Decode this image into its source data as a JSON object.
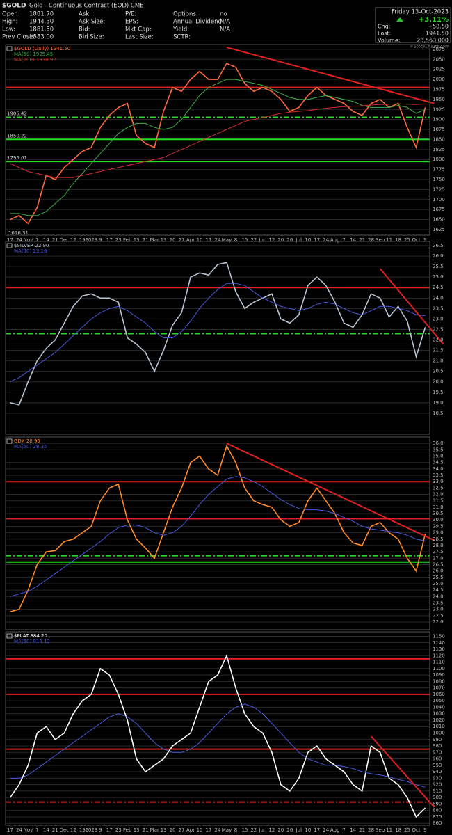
{
  "header": {
    "symbol": "$GOLD",
    "description": "Gold - Continuous Contract (EOD) CME",
    "watermark": "©StockCharts.com",
    "columns": [
      [
        {
          "label": "Open:",
          "value": "1881.70"
        },
        {
          "label": "High:",
          "value": "1944.30"
        },
        {
          "label": "Low:",
          "value": "1881.50"
        },
        {
          "label": "Prev Close:",
          "value": "1883.00"
        }
      ],
      [
        {
          "label": "Ask:"
        },
        {
          "label": "Ask Size:"
        },
        {
          "label": "Bid:"
        },
        {
          "label": "Bid Size:"
        }
      ],
      [
        {
          "label": "P/E:"
        },
        {
          "label": "EPS:"
        },
        {
          "label": "Mkt Cap:"
        },
        {
          "label": "Last Size:"
        }
      ],
      [
        {
          "label": "Options:",
          "value": "no"
        },
        {
          "label": "Annual Dividend:",
          "value": "N/A"
        },
        {
          "label": "Yield:",
          "value": "N/A"
        },
        {
          "label": "SCTR:"
        }
      ]
    ],
    "quote": {
      "date": "Friday 13-Oct-2023",
      "change_pct": "+3.11%",
      "rows": [
        {
          "label": "Chg:",
          "value": "+58.50"
        },
        {
          "label": "Last:",
          "value": "1941.50"
        },
        {
          "label": "Volume:",
          "value": "28,563,000"
        }
      ]
    }
  },
  "chart_data": [
    {
      "type": "line",
      "grid": true,
      "categories": [
        "17",
        "24",
        "Nov",
        "7",
        "14",
        "21",
        "Dec",
        "12",
        "19",
        "2023",
        "9",
        "17",
        "23",
        "Feb",
        "13",
        "21",
        "Mar",
        "13",
        "20",
        "27",
        "Apr",
        "10",
        "17",
        "24",
        "May",
        "8",
        "15",
        "22",
        "Jun",
        "12",
        "20",
        "26",
        "Jul",
        "10",
        "17",
        "24",
        "Aug",
        "7",
        "14",
        "21",
        "28",
        "Sep",
        "11",
        "18",
        "25",
        "Oct",
        "9"
      ],
      "series": [
        {
          "name": "$GOLD (Daily) 1941.50",
          "color": "#ff6a3d",
          "values": [
            1650,
            1660,
            1640,
            1680,
            1760,
            1750,
            1780,
            1800,
            1820,
            1830,
            1880,
            1910,
            1930,
            1940,
            1860,
            1840,
            1830,
            1920,
            1980,
            1970,
            2000,
            2020,
            2000,
            2000,
            2040,
            2030,
            1990,
            1970,
            1980,
            1970,
            1950,
            1920,
            1930,
            1960,
            1980,
            1960,
            1950,
            1940,
            1920,
            1910,
            1940,
            1950,
            1930,
            1940,
            1880,
            1830,
            1930
          ]
        },
        {
          "name": "MA(50) 1925.45",
          "color": "#3cb043",
          "values": [
            1665,
            1665,
            1660,
            1660,
            1670,
            1690,
            1710,
            1740,
            1765,
            1790,
            1815,
            1840,
            1865,
            1880,
            1890,
            1890,
            1880,
            1875,
            1880,
            1900,
            1930,
            1960,
            1980,
            1990,
            2000,
            2000,
            1995,
            1990,
            1985,
            1975,
            1965,
            1955,
            1950,
            1950,
            1955,
            1960,
            1955,
            1950,
            1945,
            1935,
            1930,
            1930,
            1930,
            1935,
            1930,
            1915,
            1925
          ]
        },
        {
          "name": "MA(200) 1938.92",
          "color": "#d03030",
          "values": [
            1790,
            1780,
            1770,
            1765,
            1760,
            1755,
            1755,
            1755,
            1760,
            1765,
            1770,
            1775,
            1780,
            1785,
            1790,
            1795,
            1800,
            1805,
            1815,
            1825,
            1835,
            1845,
            1855,
            1865,
            1875,
            1885,
            1895,
            1900,
            1905,
            1910,
            1915,
            1918,
            1920,
            1922,
            1925,
            1928,
            1930,
            1932,
            1933,
            1934,
            1936,
            1937,
            1938,
            1939,
            1938,
            1937,
            1939
          ]
        }
      ],
      "ylim": [
        1611,
        2087
      ],
      "yticks": [
        1625,
        1650,
        1675,
        1700,
        1725,
        1750,
        1775,
        1800,
        1825,
        1850,
        1875,
        1900,
        1925,
        1950,
        1975,
        2000,
        2025,
        2050,
        2075
      ],
      "hlines": [
        {
          "value": 1980,
          "color": "#e02020"
        },
        {
          "value": 1905.42,
          "color": "#22dd22",
          "dash": true,
          "labeled": true
        },
        {
          "value": 1850.22,
          "color": "#22dd22",
          "labeled": true
        },
        {
          "value": 1795.01,
          "color": "#22dd22",
          "labeled": true
        }
      ],
      "low_label": 1616.31,
      "trendlines": [
        {
          "start_index": 24,
          "start_value": 2080,
          "end_index": 47,
          "end_value": 1940
        }
      ]
    },
    {
      "type": "line",
      "grid": true,
      "series": [
        {
          "name": "$SILVER 22.90",
          "color": "#b8c4d0",
          "values": [
            19.0,
            18.9,
            20.0,
            21.0,
            21.6,
            22.0,
            22.8,
            23.6,
            24.1,
            24.2,
            24.0,
            24.0,
            23.8,
            22.1,
            21.8,
            21.4,
            20.5,
            21.5,
            22.7,
            23.3,
            25.0,
            25.2,
            25.1,
            25.6,
            25.7,
            24.3,
            23.5,
            23.8,
            24.0,
            24.2,
            23.0,
            22.8,
            23.2,
            24.6,
            25.0,
            24.6,
            23.8,
            22.8,
            22.6,
            23.2,
            24.2,
            24.0,
            23.1,
            23.6,
            22.9,
            21.2,
            22.6
          ]
        },
        {
          "name": "MA(50) 23.16",
          "color": "#4a5adf",
          "values": [
            20.0,
            20.2,
            20.5,
            20.8,
            21.1,
            21.4,
            21.8,
            22.2,
            22.6,
            23.0,
            23.3,
            23.5,
            23.6,
            23.4,
            23.1,
            22.8,
            22.4,
            22.1,
            22.1,
            22.4,
            22.9,
            23.5,
            24.0,
            24.4,
            24.7,
            24.7,
            24.6,
            24.3,
            24.0,
            23.8,
            23.6,
            23.5,
            23.4,
            23.5,
            23.7,
            23.8,
            23.7,
            23.5,
            23.3,
            23.2,
            23.4,
            23.6,
            23.6,
            23.5,
            23.4,
            23.2,
            23.16
          ]
        }
      ],
      "ylim": [
        17.5,
        26.7
      ],
      "yticks": [
        18.5,
        {
          "value": 19,
          "label": "19.0"
        },
        19.5,
        {
          "value": 20,
          "label": "20.0"
        },
        20.5,
        {
          "value": 21,
          "label": "21.0"
        },
        21.5,
        {
          "value": 22,
          "label": "22.0"
        },
        22.5,
        {
          "value": 23,
          "label": "23.0"
        },
        23.5,
        {
          "value": 24,
          "label": "24.0"
        },
        24.5,
        {
          "value": 25,
          "label": "25.0"
        },
        25.5,
        {
          "value": 26,
          "label": "26.0"
        },
        26.5
      ],
      "hlines": [
        {
          "value": 24.5,
          "color": "#e02020"
        },
        {
          "value": 22.3,
          "color": "#22dd22",
          "dash": true
        }
      ],
      "trendlines": [
        {
          "start_index": 41,
          "start_value": 25.4,
          "end_index": 48,
          "end_value": 21.8
        }
      ]
    },
    {
      "type": "line",
      "grid": true,
      "series": [
        {
          "name": "GDX 28.95",
          "color": "#ff8a2a",
          "values": [
            22.8,
            23.0,
            24.5,
            26.5,
            27.5,
            27.6,
            28.3,
            28.5,
            29.0,
            29.5,
            31.5,
            32.5,
            32.8,
            30.0,
            28.5,
            27.8,
            27.0,
            29.0,
            31.0,
            32.5,
            34.5,
            35.0,
            34.0,
            33.5,
            35.8,
            34.5,
            32.5,
            31.5,
            31.2,
            31.0,
            30.0,
            29.5,
            29.8,
            31.5,
            32.5,
            31.5,
            30.5,
            29.0,
            28.2,
            28.0,
            29.5,
            29.8,
            29.0,
            28.5,
            27.0,
            26.0,
            28.9
          ]
        },
        {
          "name": "MA(50) 28.35",
          "color": "#4a5adf",
          "values": [
            24.0,
            24.2,
            24.4,
            24.8,
            25.3,
            25.8,
            26.3,
            26.8,
            27.3,
            27.8,
            28.3,
            28.9,
            29.4,
            29.6,
            29.6,
            29.4,
            29.0,
            28.8,
            29.0,
            29.5,
            30.3,
            31.2,
            32.0,
            32.6,
            33.2,
            33.4,
            33.3,
            33.0,
            32.6,
            32.1,
            31.6,
            31.2,
            30.9,
            30.8,
            30.8,
            30.7,
            30.5,
            30.2,
            29.9,
            29.5,
            29.3,
            29.2,
            29.1,
            29.0,
            28.8,
            28.5,
            28.35
          ]
        }
      ],
      "ylim": [
        21.4,
        36.5
      ],
      "yticks": [
        {
          "value": 22,
          "label": "22.0"
        },
        22.5,
        {
          "value": 23,
          "label": "23.0"
        },
        23.5,
        {
          "value": 24,
          "label": "24.0"
        },
        24.5,
        {
          "value": 25,
          "label": "25.0"
        },
        25.5,
        {
          "value": 26,
          "label": "26.0"
        },
        26.5,
        {
          "value": 27,
          "label": "27.0"
        },
        27.5,
        {
          "value": 28,
          "label": "28.0"
        },
        28.5,
        {
          "value": 29,
          "label": "29.0"
        },
        29.5,
        {
          "value": 30,
          "label": "30.0"
        },
        30.5,
        {
          "value": 31,
          "label": "31.0"
        },
        31.5,
        {
          "value": 32,
          "label": "32.0"
        },
        32.5,
        {
          "value": 33,
          "label": "33.0"
        },
        33.5,
        {
          "value": 34,
          "label": "34.0"
        },
        34.5,
        {
          "value": 35,
          "label": "35.0"
        },
        35.5,
        {
          "value": 36,
          "label": "36.0"
        }
      ],
      "hlines": [
        {
          "value": 33.0,
          "color": "#e02020"
        },
        {
          "value": 30.1,
          "color": "#e02020"
        },
        {
          "value": 27.2,
          "color": "#22dd22",
          "dash": true
        },
        {
          "value": 26.7,
          "color": "#22dd22"
        }
      ],
      "trendlines": [
        {
          "start_index": 24,
          "start_value": 36.0,
          "end_index": 47,
          "end_value": 28.4
        }
      ]
    },
    {
      "type": "line",
      "grid": true,
      "categories": [
        "17",
        "24",
        "Nov",
        "7",
        "14",
        "21",
        "Dec",
        "12",
        "19",
        "2023",
        "9",
        "17",
        "23",
        "Feb",
        "13",
        "21",
        "Mar",
        "13",
        "20",
        "27",
        "Apr",
        "10",
        "17",
        "24",
        "May",
        "8",
        "15",
        "22",
        "Jun",
        "12",
        "20",
        "26",
        "Jul",
        "10",
        "17",
        "24",
        "Aug",
        "7",
        "14",
        "21",
        "28",
        "Sep",
        "11",
        "18",
        "25",
        "Oct",
        "9"
      ],
      "series": [
        {
          "name": "$PLAT 884.20",
          "color": "#ffffff",
          "values": [
            900,
            920,
            950,
            1000,
            1010,
            990,
            1000,
            1030,
            1050,
            1060,
            1100,
            1090,
            1060,
            1020,
            960,
            940,
            950,
            960,
            980,
            990,
            1000,
            1040,
            1080,
            1090,
            1120,
            1070,
            1030,
            1010,
            1000,
            970,
            920,
            910,
            930,
            970,
            980,
            960,
            950,
            940,
            920,
            910,
            980,
            970,
            930,
            920,
            900,
            870,
            884
          ]
        },
        {
          "name": "MA(50) 916.12",
          "color": "#4a5adf",
          "values": [
            930,
            930,
            935,
            945,
            955,
            965,
            975,
            985,
            995,
            1005,
            1015,
            1025,
            1030,
            1025,
            1015,
            1000,
            985,
            975,
            970,
            970,
            975,
            985,
            1000,
            1015,
            1030,
            1040,
            1045,
            1040,
            1030,
            1015,
            1000,
            985,
            970,
            960,
            955,
            950,
            950,
            948,
            945,
            940,
            937,
            935,
            932,
            928,
            925,
            920,
            916
          ]
        }
      ],
      "ylim": [
        857,
        1157
      ],
      "yticks": [
        860,
        870,
        880,
        890,
        900,
        910,
        920,
        930,
        940,
        950,
        960,
        970,
        980,
        990,
        1000,
        1010,
        1020,
        1030,
        1040,
        1050,
        1060,
        1070,
        1080,
        1090,
        1100,
        1110,
        1120,
        1130,
        1140,
        1150
      ],
      "hlines": [
        {
          "value": 1115,
          "color": "#e02020"
        },
        {
          "value": 1060,
          "color": "#e02020"
        },
        {
          "value": 975,
          "color": "#e02020"
        },
        {
          "value": 893,
          "color": "#e02020",
          "dash": true
        }
      ],
      "trendlines": [
        {
          "start_index": 40,
          "start_value": 995,
          "end_index": 47,
          "end_value": 885
        }
      ]
    }
  ]
}
